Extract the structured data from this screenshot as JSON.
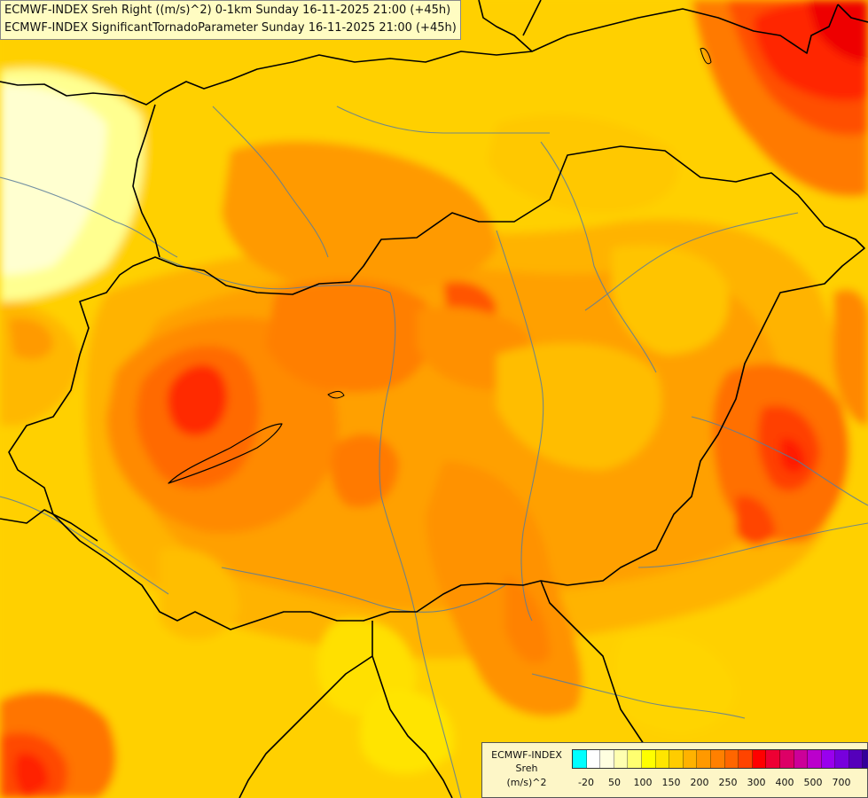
{
  "titles": {
    "line1": "ECMWF-INDEX Sreh Right ((m/s)^2) 0-1km Sunday 16-11-2025 21:00 (+45h)",
    "line2": "ECMWF-INDEX SignificantTornadoParameter Sunday 16-11-2025 21:00 (+45h)"
  },
  "legend": {
    "source": "ECMWF-INDEX",
    "variable": "Sreh",
    "unit": "(m/s)^2",
    "colors": [
      "#00ffff",
      "#ffffff",
      "#ffffe0",
      "#ffffb0",
      "#ffff70",
      "#ffff00",
      "#ffe600",
      "#ffcc00",
      "#ffb200",
      "#ff9900",
      "#ff8000",
      "#ff6600",
      "#ff4400",
      "#ff0000",
      "#ee0033",
      "#dd0066",
      "#cc0099",
      "#bb00cc",
      "#9900ee",
      "#7700dd",
      "#5500bb",
      "#330099",
      "#110066"
    ],
    "ticks": [
      "-20",
      "50",
      "100",
      "150",
      "200",
      "250",
      "300",
      "400",
      "500",
      "700"
    ]
  },
  "colors": {
    "country_border": "#000000",
    "river": "#5a7d9a"
  }
}
